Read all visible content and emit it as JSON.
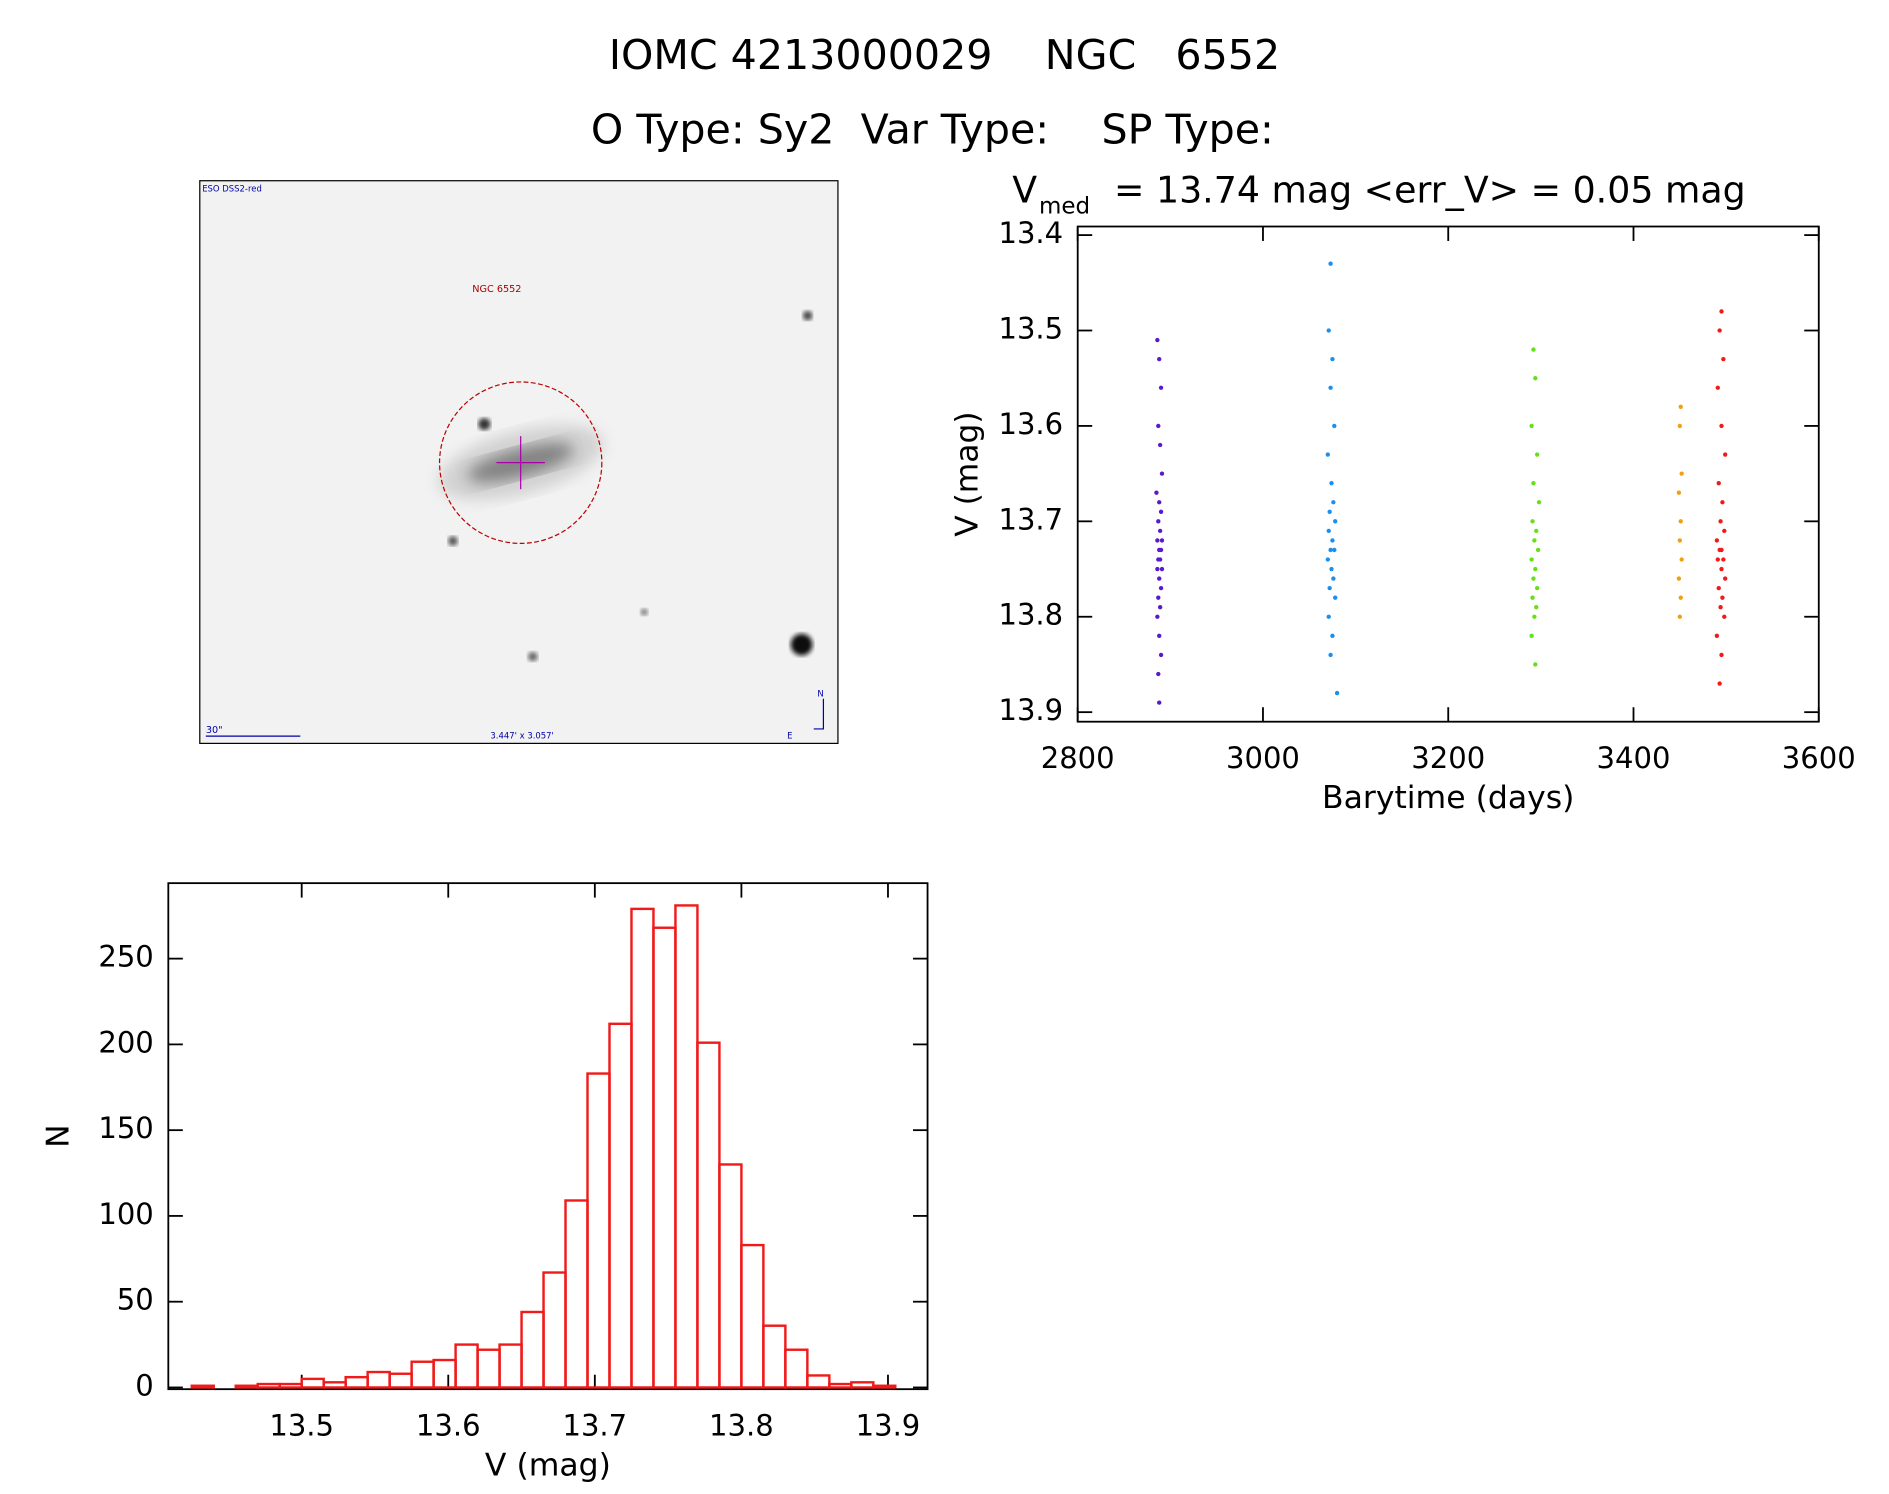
{
  "header": {
    "title": "IOMC 4213000029    NGC   6552",
    "subtitle": "O Type: Sy2  Var Type:    SP Type:"
  },
  "image": {
    "survey": "ESO DSS2-red",
    "object": "NGC 6552",
    "scale": "30\"",
    "size": "3.447' x 3.057'",
    "north": "N",
    "east": "E"
  },
  "chart_data": [
    {
      "type": "scatter",
      "title_main": "V",
      "title_sub": "med",
      "title_rest": "= 13.74 mag <err_V> = 0.05 mag",
      "xlabel": "Barytime (days)",
      "ylabel": "V (mag)",
      "xlim": [
        2800,
        3600
      ],
      "ylim": [
        13.391,
        13.91
      ],
      "y_inverted": true,
      "xticks": [
        2800,
        3000,
        3200,
        3400,
        3600
      ],
      "yticks": [
        13.4,
        13.5,
        13.6,
        13.7,
        13.8,
        13.9
      ],
      "series": [
        {
          "color": "#5a1acc",
          "x": [
            2886,
            2888,
            2890,
            2887,
            2889,
            2891,
            2885,
            2888,
            2890,
            2887,
            2889,
            2886,
            2891,
            2888,
            2890,
            2887,
            2889,
            2886,
            2891,
            2888,
            2890,
            2887,
            2889,
            2886,
            2888,
            2890,
            2887,
            2888
          ],
          "values": [
            13.51,
            13.53,
            13.56,
            13.6,
            13.62,
            13.65,
            13.67,
            13.68,
            13.69,
            13.7,
            13.71,
            13.72,
            13.72,
            13.73,
            13.73,
            13.74,
            13.74,
            13.75,
            13.75,
            13.76,
            13.77,
            13.78,
            13.79,
            13.8,
            13.82,
            13.84,
            13.86,
            13.89
          ]
        },
        {
          "color": "#1a8ff0",
          "x": [
            3073,
            3071,
            3075,
            3073,
            3077,
            3070,
            3074,
            3076,
            3072,
            3078,
            3071,
            3075,
            3073,
            3077,
            3070,
            3074,
            3076,
            3072,
            3078,
            3071,
            3075,
            3073,
            3080
          ],
          "values": [
            13.43,
            13.5,
            13.53,
            13.56,
            13.6,
            13.63,
            13.66,
            13.68,
            13.69,
            13.7,
            13.71,
            13.72,
            13.73,
            13.73,
            13.74,
            13.75,
            13.76,
            13.77,
            13.78,
            13.8,
            13.82,
            13.84,
            13.88
          ]
        },
        {
          "color": "#66e01a",
          "x": [
            3292,
            3294,
            3290,
            3296,
            3292,
            3298,
            3291,
            3295,
            3293,
            3297,
            3290,
            3294,
            3292,
            3296,
            3291,
            3295,
            3293,
            3290,
            3294
          ],
          "values": [
            13.52,
            13.55,
            13.6,
            13.63,
            13.66,
            13.68,
            13.7,
            13.71,
            13.72,
            13.73,
            13.74,
            13.75,
            13.76,
            13.77,
            13.78,
            13.79,
            13.8,
            13.82,
            13.85
          ]
        },
        {
          "color": "#f0a010",
          "x": [
            3451,
            3450,
            3452,
            3449,
            3451,
            3450,
            3452,
            3449,
            3451,
            3450
          ],
          "values": [
            13.58,
            13.6,
            13.65,
            13.67,
            13.7,
            13.72,
            13.74,
            13.76,
            13.78,
            13.8
          ]
        },
        {
          "color": "#f01a1a",
          "x": [
            3495,
            3493,
            3497,
            3491,
            3495,
            3499,
            3492,
            3496,
            3494,
            3498,
            3490,
            3495,
            3493,
            3497,
            3491,
            3495,
            3499,
            3492,
            3496,
            3494,
            3498,
            3490,
            3495,
            3493
          ],
          "values": [
            13.48,
            13.5,
            13.53,
            13.56,
            13.6,
            13.63,
            13.66,
            13.68,
            13.7,
            13.71,
            13.72,
            13.73,
            13.73,
            13.74,
            13.74,
            13.75,
            13.76,
            13.77,
            13.78,
            13.79,
            13.8,
            13.82,
            13.84,
            13.87
          ]
        }
      ]
    },
    {
      "type": "histogram",
      "xlabel": "V (mag)",
      "ylabel": "N",
      "color": "#f01a1a",
      "bins": [
        13.425,
        13.44,
        13.455,
        13.47,
        13.485,
        13.5,
        13.515,
        13.53,
        13.545,
        13.56,
        13.575,
        13.59,
        13.605,
        13.62,
        13.635,
        13.65,
        13.665,
        13.68,
        13.695,
        13.71,
        13.725,
        13.74,
        13.755,
        13.77,
        13.785,
        13.8,
        13.815,
        13.83,
        13.845,
        13.86,
        13.875,
        13.89,
        13.905
      ],
      "values": [
        1,
        0,
        1,
        2,
        2,
        5,
        3,
        6,
        9,
        8,
        15,
        16,
        25,
        22,
        25,
        44,
        67,
        109,
        183,
        212,
        279,
        268,
        281,
        201,
        130,
        83,
        36,
        22,
        7,
        2,
        3,
        1
      ],
      "xlim": [
        13.409,
        13.927
      ],
      "ylim": [
        -1,
        294
      ],
      "xticks": [
        13.5,
        13.6,
        13.7,
        13.8,
        13.9
      ],
      "yticks": [
        0,
        50,
        100,
        150,
        200,
        250
      ]
    }
  ]
}
